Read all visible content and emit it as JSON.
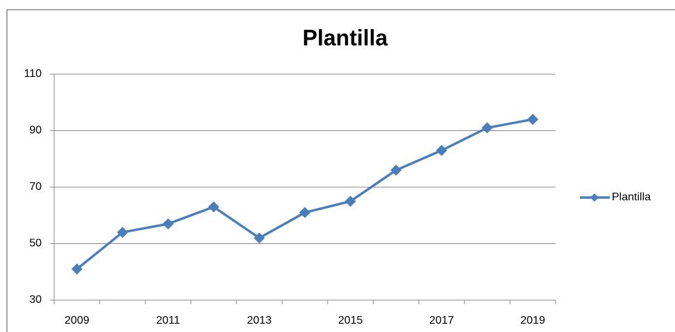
{
  "chart_data": {
    "type": "line",
    "title": "Plantilla",
    "categories": [
      "2009",
      null,
      "2011",
      null,
      "2013",
      null,
      "2015",
      null,
      "2017",
      null,
      "2019"
    ],
    "series": [
      {
        "name": "Plantilla",
        "color": "#4a7ebb",
        "values": [
          41,
          54,
          57,
          63,
          52,
          61,
          65,
          76,
          83,
          91,
          94
        ]
      }
    ],
    "ylim": [
      30,
      110
    ],
    "yticks": [
      30,
      50,
      70,
      90,
      110
    ],
    "grid": true,
    "legend": "right"
  }
}
